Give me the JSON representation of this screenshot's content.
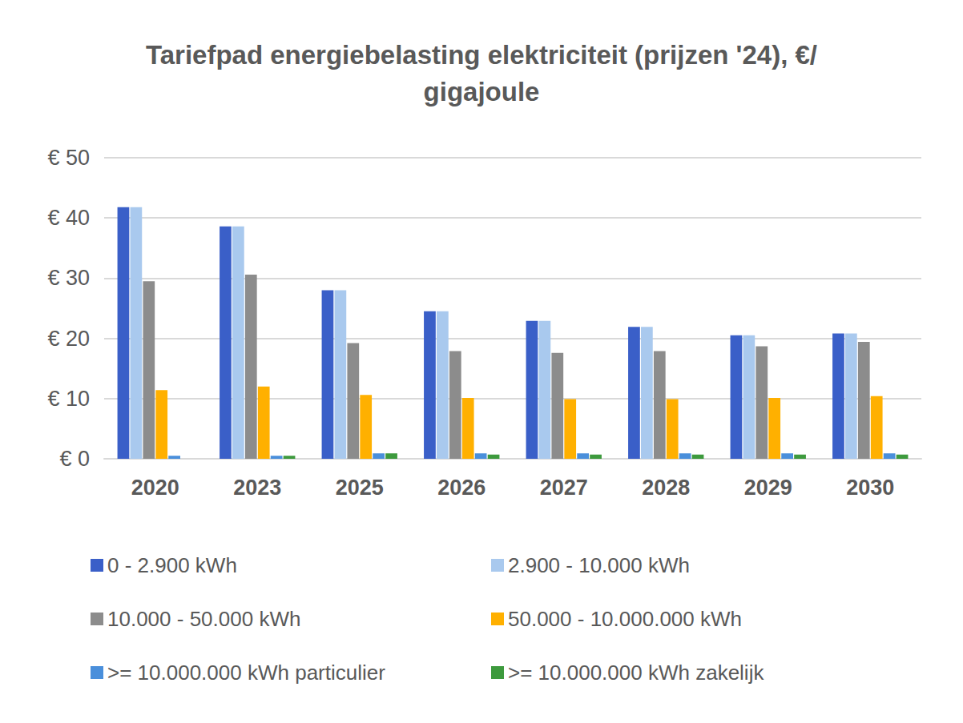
{
  "chart_data": {
    "type": "bar",
    "title": "Tariefpad energiebelasting elektriciteit (prijzen '24), €/gigajoule",
    "categories": [
      "2020",
      "2023",
      "2025",
      "2026",
      "2027",
      "2028",
      "2029",
      "2030"
    ],
    "series": [
      {
        "name": "0 - 2.900 kWh",
        "color": "#3a5fc8",
        "values": [
          41.8,
          38.6,
          28.0,
          24.5,
          22.9,
          21.9,
          20.5,
          20.8
        ]
      },
      {
        "name": "2.900 - 10.000 kWh",
        "color": "#a9c9ee",
        "values": [
          41.8,
          38.6,
          28.0,
          24.5,
          22.9,
          21.9,
          20.5,
          20.8
        ]
      },
      {
        "name": "10.000 - 50.000 kWh",
        "color": "#8c8c8c",
        "values": [
          29.5,
          30.6,
          19.2,
          17.9,
          17.6,
          17.9,
          18.7,
          19.4
        ]
      },
      {
        "name": "50.000 - 10.000.000 kWh",
        "color": "#ffb000",
        "values": [
          11.4,
          12.0,
          10.6,
          10.1,
          9.9,
          9.9,
          10.1,
          10.4
        ]
      },
      {
        "name": ">= 10.000.000 kWh particulier",
        "color": "#4a8fdb",
        "values": [
          0.5,
          0.5,
          0.9,
          0.9,
          0.9,
          0.9,
          0.9,
          0.9
        ]
      },
      {
        "name": ">= 10.000.000 kWh zakelijk",
        "color": "#3d9a3d",
        "values": [
          0,
          0.5,
          0.9,
          0.7,
          0.7,
          0.7,
          0.7,
          0.7
        ]
      }
    ],
    "ylim": [
      0,
      50
    ],
    "yticks": [
      {
        "value": 0,
        "label": "€ 0"
      },
      {
        "value": 10,
        "label": "€ 10"
      },
      {
        "value": 20,
        "label": "€ 20"
      },
      {
        "value": 30,
        "label": "€ 30"
      },
      {
        "value": 40,
        "label": "€ 40"
      },
      {
        "value": 50,
        "label": "€ 50"
      }
    ],
    "grid": true,
    "legend": "bottom"
  }
}
